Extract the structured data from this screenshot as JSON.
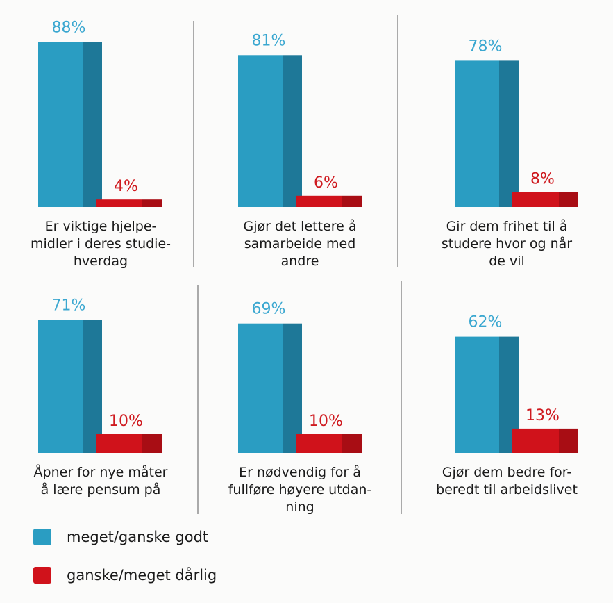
{
  "chart_data": {
    "type": "bar",
    "ylim": [
      0,
      100
    ],
    "colors": {
      "good": "#2a9dc2",
      "good_dark": "#1e7898",
      "bad": "#d0121b",
      "bad_dark": "#a80d14",
      "good_label": "#3aa7d0",
      "bad_label": "#cf1a1f"
    },
    "series": [
      {
        "name": "meget/ganske godt",
        "key": "good"
      },
      {
        "name": "ganske/meget dårlig",
        "key": "bad"
      }
    ],
    "panels": [
      {
        "caption": [
          "Er viktige hjelpe-",
          "midler i deres studie-",
          "hverdag"
        ],
        "good": 88,
        "bad": 4,
        "good_label": "88%",
        "bad_label": "4%"
      },
      {
        "caption": [
          "Gjør det lettere å",
          "samarbeide med",
          "andre"
        ],
        "good": 81,
        "bad": 6,
        "good_label": "81%",
        "bad_label": "6%"
      },
      {
        "caption": [
          "Gir dem frihet til å",
          "studere hvor og når",
          "de vil"
        ],
        "good": 78,
        "bad": 8,
        "good_label": "78%",
        "bad_label": "8%"
      },
      {
        "caption": [
          "Åpner for nye måter",
          "å lære pensum på"
        ],
        "good": 71,
        "bad": 10,
        "good_label": "71%",
        "bad_label": "10%"
      },
      {
        "caption": [
          "Er nødvendig for å",
          "fullføre høyere utdan-",
          "ning"
        ],
        "good": 69,
        "bad": 10,
        "good_label": "69%",
        "bad_label": "10%"
      },
      {
        "caption": [
          "Gjør dem bedre for-",
          "beredt til arbeidslivet"
        ],
        "good": 62,
        "bad": 13,
        "good_label": "62%",
        "bad_label": "13%"
      }
    ]
  }
}
